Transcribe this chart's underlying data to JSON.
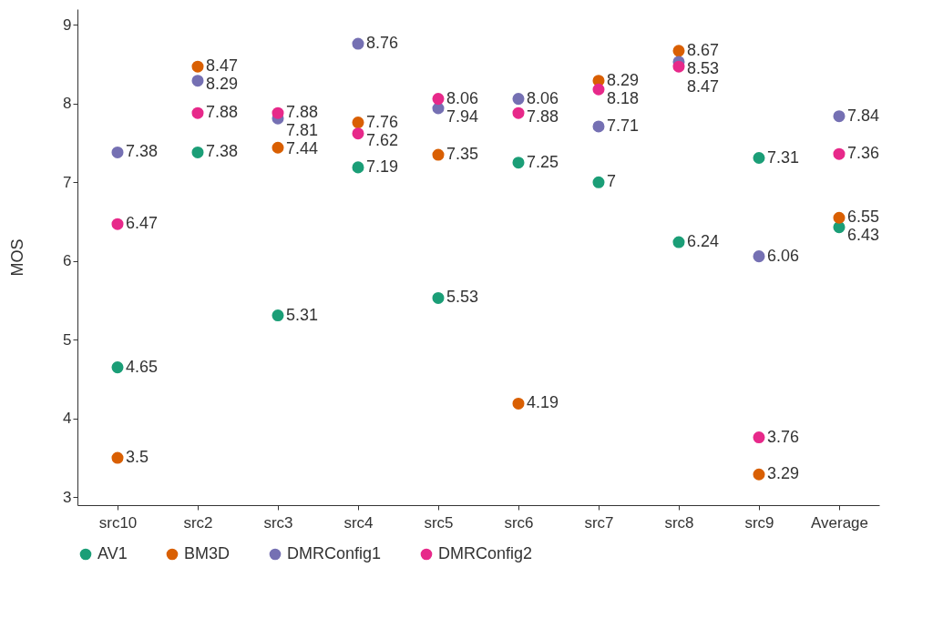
{
  "chart_data": {
    "type": "scatter",
    "ylabel": "MOS",
    "categories": [
      "src10",
      "src2",
      "src3",
      "src4",
      "src5",
      "src6",
      "src7",
      "src8",
      "src9",
      "Average"
    ],
    "series": [
      {
        "name": "AV1",
        "color": "#1b9e77",
        "values": [
          4.65,
          7.38,
          5.31,
          7.19,
          5.53,
          7.25,
          7,
          6.24,
          7.31,
          6.43
        ]
      },
      {
        "name": "BM3D",
        "color": "#d95f02",
        "values": [
          3.5,
          8.47,
          7.44,
          7.76,
          7.35,
          4.19,
          8.29,
          8.67,
          3.29,
          6.55
        ]
      },
      {
        "name": "DMRConfig1",
        "color": "#7570b3",
        "values": [
          7.38,
          8.29,
          7.81,
          8.76,
          7.94,
          8.06,
          7.71,
          8.53,
          6.06,
          7.84
        ]
      },
      {
        "name": "DMRConfig2",
        "color": "#e7298a",
        "values": [
          6.47,
          7.88,
          7.88,
          7.62,
          8.06,
          7.88,
          8.18,
          8.47,
          3.76,
          7.36
        ]
      }
    ],
    "ylim": [
      2.9,
      9.2
    ],
    "yticks": [
      3,
      4,
      5,
      6,
      7,
      8,
      9
    ],
    "grid": false,
    "legend": "bottom",
    "marker": "circle",
    "data_labels": true
  }
}
